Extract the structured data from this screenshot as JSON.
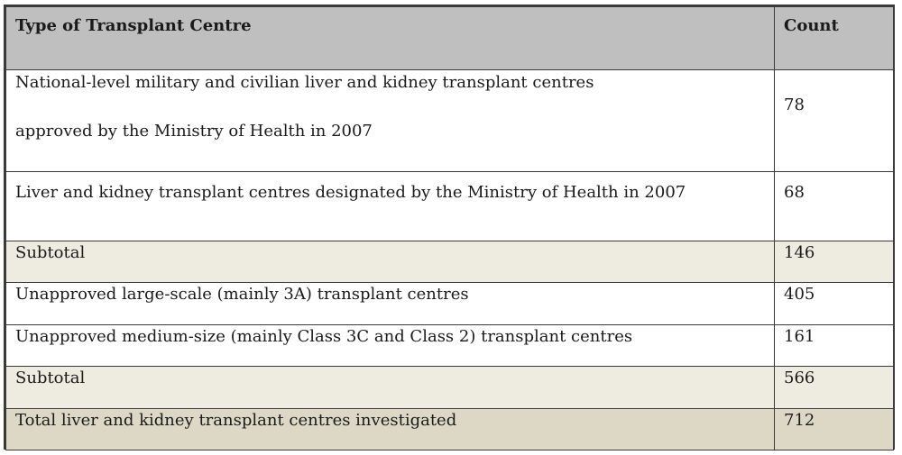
{
  "table": {
    "headers": {
      "type": "Type of Transplant Centre",
      "count": "Count"
    },
    "rows": [
      {
        "type_line1": "National-level military and civilian liver and kidney transplant centres",
        "type_line2": "approved by the Ministry of Health in 2007",
        "count": "78"
      },
      {
        "type": "Liver and kidney transplant centres designated by the Ministry of Health in 2007",
        "count": "68"
      },
      {
        "type": "Subtotal",
        "count": "146"
      },
      {
        "type": "Unapproved large-scale (mainly 3A) transplant centres",
        "count": "405"
      },
      {
        "type": "Unapproved medium-size (mainly Class 3C and Class 2) transplant centres",
        "count": "161"
      },
      {
        "type": "Subtotal",
        "count": "566"
      },
      {
        "type": "Total liver and kidney transplant centres investigated",
        "count": "712"
      }
    ]
  },
  "colors": {
    "header_bg": "#bfbfbf",
    "subtotal_bg": "#eeebe0",
    "total_bg": "#ddd8c6",
    "border": "#3a3a3a"
  }
}
